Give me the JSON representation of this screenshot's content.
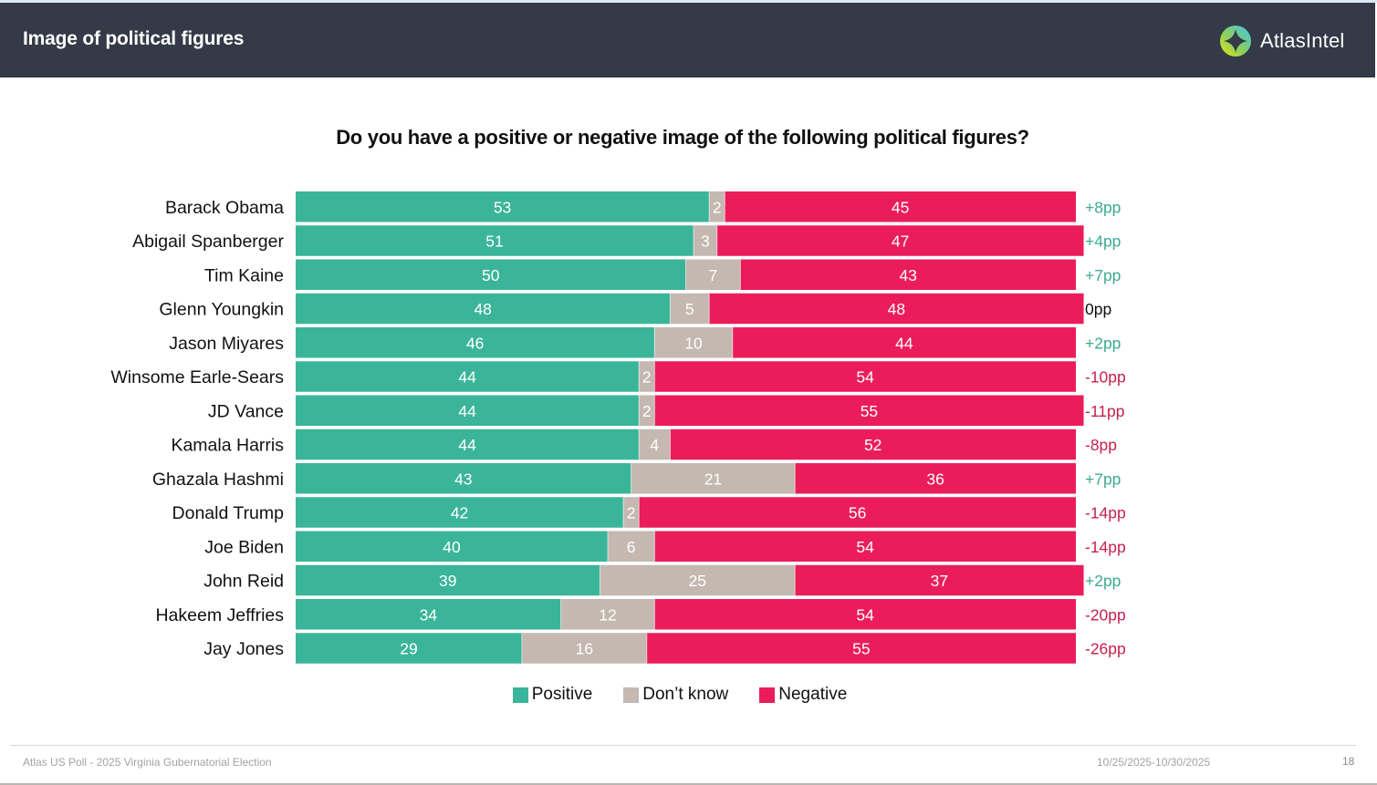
{
  "header": {
    "title": "Image of political figures",
    "logo_text": "AtlasIntel",
    "logo_icon": "atlasintel-compass-logo"
  },
  "colors": {
    "positive": "#3bb599",
    "dont_know": "#c4b8b1",
    "negative": "#ea1d5a",
    "net_positive_text": "#3bab92",
    "net_negative_text": "#c7204f",
    "net_zero_text": "#111111",
    "header_bg": "#343a47"
  },
  "chart_data": {
    "type": "bar",
    "orientation": "horizontal",
    "stacked": true,
    "title": "Do you have a positive or negative image of the following political figures?",
    "xlabel": "",
    "ylabel": "",
    "xlim": [
      0,
      100
    ],
    "grid": false,
    "legend_position": "bottom-center",
    "categories": [
      "Barack Obama",
      "Abigail Spanberger",
      "Tim Kaine",
      "Glenn Youngkin",
      "Jason Miyares",
      "Winsome Earle-Sears",
      "JD Vance",
      "Kamala Harris",
      "Ghazala Hashmi",
      "Donald Trump",
      "Joe Biden",
      "John Reid",
      "Hakeem Jeffries",
      "Jay Jones"
    ],
    "series": [
      {
        "name": "Positive",
        "values": [
          53,
          51,
          50,
          48,
          46,
          44,
          44,
          44,
          43,
          42,
          40,
          39,
          34,
          29
        ]
      },
      {
        "name": "Don’t know",
        "values": [
          2,
          3,
          7,
          5,
          10,
          2,
          2,
          4,
          21,
          2,
          6,
          25,
          12,
          16
        ]
      },
      {
        "name": "Negative",
        "values": [
          45,
          47,
          43,
          48,
          44,
          54,
          55,
          52,
          36,
          56,
          54,
          37,
          54,
          55
        ]
      }
    ],
    "net_labels": [
      "+8pp",
      "+4pp",
      "+7pp",
      "0pp",
      "+2pp",
      "-10pp",
      "-11pp",
      "-8pp",
      "+7pp",
      "-14pp",
      "-14pp",
      "+2pp",
      "-20pp",
      "-26pp"
    ],
    "legend": [
      "Positive",
      "Don’t know",
      "Negative"
    ]
  },
  "footer": {
    "source": "Atlas US Poll - 2025 Virginia Gubernatorial Election",
    "date_range": "10/25/2025-10/30/2025",
    "page_number": "18"
  }
}
